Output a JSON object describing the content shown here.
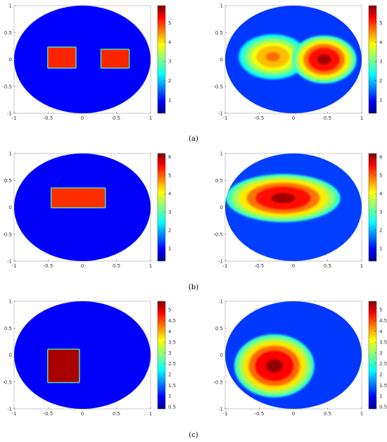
{
  "chart_data": [
    {
      "type": "heatmap",
      "panel": "a",
      "side": "ground-truth",
      "xlim": [
        -1,
        1
      ],
      "ylim": [
        -1,
        1
      ],
      "xticks": [
        "-1",
        "-0.5",
        "0",
        "0.5",
        "1"
      ],
      "yticks": [
        "-1",
        "-0.5",
        "0",
        "0.5",
        "1"
      ],
      "background_value": 1,
      "inclusions": [
        {
          "shape": "rect",
          "x": [
            -0.5,
            -0.1
          ],
          "y": [
            -0.15,
            0.22
          ],
          "value": 5.0
        },
        {
          "shape": "rect",
          "x": [
            0.28,
            0.68
          ],
          "y": [
            -0.15,
            0.18
          ],
          "value": 5.0
        }
      ],
      "colorbar": {
        "min": 0.3,
        "max": 5.9,
        "ticks": [
          "1",
          "2",
          "3",
          "4",
          "5"
        ]
      }
    },
    {
      "type": "heatmap",
      "panel": "a",
      "side": "reconstruction",
      "xlim": [
        -1,
        1
      ],
      "ylim": [
        -1,
        1
      ],
      "xticks": [
        "-1",
        "-0.5",
        "0",
        "0.5",
        "1"
      ],
      "yticks": [
        "-1",
        "-0.5",
        "0",
        "0.5",
        "1"
      ],
      "background_value": 1.3,
      "blobs": [
        {
          "x": -0.3,
          "y": 0.05,
          "peak": 4.6,
          "sx": 0.18,
          "sy": 0.15
        },
        {
          "x": 0.45,
          "y": 0.0,
          "peak": 5.7,
          "sx": 0.17,
          "sy": 0.16
        }
      ],
      "colorbar": {
        "min": 0.3,
        "max": 5.9,
        "ticks": [
          "1",
          "2",
          "3",
          "4",
          "5"
        ]
      }
    },
    {
      "type": "heatmap",
      "panel": "b",
      "side": "ground-truth",
      "xlim": [
        -1,
        1
      ],
      "ylim": [
        -1,
        1
      ],
      "xticks": [
        "-1",
        "-0.5",
        "0",
        "0.5",
        "1"
      ],
      "yticks": [
        "-1",
        "-0.5",
        "0",
        "0.5",
        "1"
      ],
      "background_value": 1,
      "inclusions": [
        {
          "shape": "rect",
          "x": [
            -0.45,
            0.33
          ],
          "y": [
            0.0,
            0.35
          ],
          "value": 5.2
        }
      ],
      "colorbar": {
        "min": 0.3,
        "max": 6.2,
        "ticks": [
          "1",
          "2",
          "3",
          "4",
          "5",
          "6"
        ]
      }
    },
    {
      "type": "heatmap",
      "panel": "b",
      "side": "reconstruction",
      "xlim": [
        -1,
        1
      ],
      "ylim": [
        -1,
        1
      ],
      "xticks": [
        "-1",
        "-0.5",
        "0",
        "0.5",
        "1"
      ],
      "yticks": [
        "-1",
        "-0.5",
        "0",
        "0.5",
        "1"
      ],
      "background_value": 1.4,
      "blobs": [
        {
          "x": -0.15,
          "y": 0.17,
          "peak": 6.0,
          "sx": 0.3,
          "sy": 0.16
        }
      ],
      "colorbar": {
        "min": 0.3,
        "max": 6.2,
        "ticks": [
          "1",
          "2",
          "3",
          "4",
          "5",
          "6"
        ]
      }
    },
    {
      "type": "heatmap",
      "panel": "c",
      "side": "ground-truth",
      "xlim": [
        -1,
        1
      ],
      "ylim": [
        -1,
        1
      ],
      "xticks": [
        "-1",
        "-0.5",
        "0",
        "0.5",
        "1"
      ],
      "yticks": [
        "-1",
        "-0.5",
        "0",
        "0.5",
        "1"
      ],
      "background_value": 1,
      "inclusions": [
        {
          "shape": "rect",
          "x": [
            -0.5,
            -0.05
          ],
          "y": [
            -0.5,
            0.1
          ],
          "value": 5.2
        }
      ],
      "colorbar": {
        "min": 0.4,
        "max": 5.4,
        "ticks": [
          "0.5",
          "1",
          "1.5",
          "2",
          "2.5",
          "3",
          "3.5",
          "4",
          "4.5",
          "5"
        ]
      }
    },
    {
      "type": "heatmap",
      "panel": "c",
      "side": "reconstruction",
      "xlim": [
        -1,
        1
      ],
      "ylim": [
        -1,
        1
      ],
      "xticks": [
        "-1",
        "-0.5",
        "0",
        "0.5",
        "1"
      ],
      "yticks": [
        "-1",
        "-0.5",
        "0",
        "0.5",
        "1"
      ],
      "background_value": 1.3,
      "blobs": [
        {
          "x": -0.28,
          "y": -0.2,
          "peak": 5.3,
          "sx": 0.21,
          "sy": 0.21
        }
      ],
      "colorbar": {
        "min": 0.4,
        "max": 5.4,
        "ticks": [
          "0.5",
          "1",
          "1.5",
          "2",
          "2.5",
          "3",
          "3.5",
          "4",
          "4.5",
          "5"
        ]
      }
    }
  ],
  "captions": [
    "(a)",
    "(b)",
    "(c)"
  ]
}
